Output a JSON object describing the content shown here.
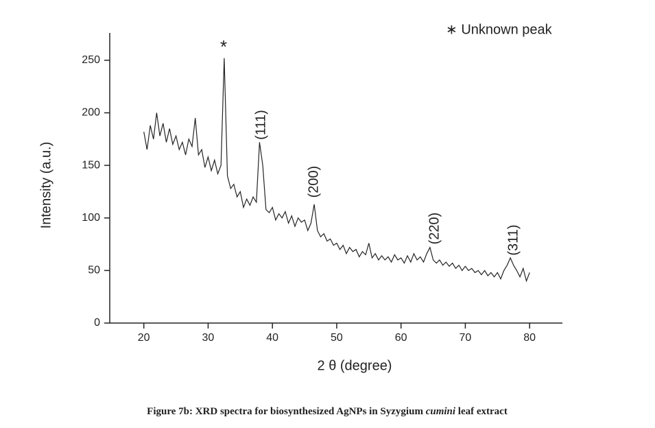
{
  "chart_data": {
    "type": "line",
    "xlabel": "2 θ (degree)",
    "ylabel": "Intensity (a.u.)",
    "legend": "∗ Unknown peak",
    "annotations": [
      "*",
      "(111)",
      "(200)",
      "(220)",
      "(311)"
    ],
    "caption": {
      "prefix": "Figure 7b: XRD spectra for biosynthesized AgNPs in Syzygium ",
      "italic": "cumini",
      "suffix": " leaf extract"
    },
    "xlim": [
      14.7,
      85.1
    ],
    "ylim": [
      0,
      276
    ],
    "xticks": [
      20,
      30,
      40,
      50,
      60,
      70,
      80
    ],
    "yticks": [
      0,
      50,
      100,
      150,
      200,
      250
    ],
    "color": "#222222",
    "x": [
      20,
      20.5,
      21,
      21.5,
      22,
      22.5,
      23,
      23.5,
      24,
      24.5,
      25,
      25.5,
      26,
      26.5,
      27,
      27.5,
      28,
      28.5,
      29,
      29.5,
      30,
      30.5,
      31,
      31.5,
      32,
      32.5,
      33,
      33.5,
      34,
      34.5,
      35,
      35.5,
      36,
      36.5,
      37,
      37.5,
      38,
      38.5,
      39,
      39.5,
      40,
      40.5,
      41,
      41.5,
      42,
      42.5,
      43,
      43.5,
      44,
      44.5,
      45,
      45.5,
      46,
      46.5,
      47,
      47.5,
      48,
      48.5,
      49,
      49.5,
      50,
      50.5,
      51,
      51.5,
      52,
      52.5,
      53,
      53.5,
      54,
      54.5,
      55,
      55.5,
      56,
      56.5,
      57,
      57.5,
      58,
      58.5,
      59,
      59.5,
      60,
      60.5,
      61,
      61.5,
      62,
      62.5,
      63,
      63.5,
      64,
      64.5,
      65,
      65.5,
      66,
      66.5,
      67,
      67.5,
      68,
      68.5,
      69,
      69.5,
      70,
      70.5,
      71,
      71.5,
      72,
      72.5,
      73,
      73.5,
      74,
      74.5,
      75,
      75.5,
      76,
      76.5,
      77,
      77.5,
      78,
      78.5,
      79,
      79.5,
      80
    ],
    "values": [
      182,
      165,
      188,
      175,
      200,
      178,
      190,
      172,
      185,
      170,
      178,
      165,
      172,
      160,
      175,
      168,
      195,
      160,
      165,
      148,
      158,
      145,
      155,
      142,
      150,
      252,
      140,
      128,
      132,
      120,
      125,
      110,
      118,
      112,
      120,
      115,
      172,
      150,
      108,
      105,
      110,
      98,
      104,
      100,
      106,
      95,
      102,
      92,
      100,
      96,
      98,
      88,
      95,
      113,
      88,
      82,
      85,
      78,
      80,
      74,
      76,
      70,
      74,
      66,
      72,
      68,
      70,
      63,
      68,
      65,
      76,
      62,
      66,
      60,
      64,
      60,
      63,
      58,
      65,
      60,
      62,
      57,
      64,
      58,
      66,
      60,
      63,
      58,
      66,
      72,
      60,
      57,
      60,
      55,
      58,
      54,
      57,
      52,
      55,
      50,
      54,
      50,
      52,
      48,
      50,
      46,
      50,
      45,
      48,
      44,
      48,
      42,
      50,
      55,
      62,
      55,
      50,
      44,
      52,
      40,
      48
    ]
  }
}
